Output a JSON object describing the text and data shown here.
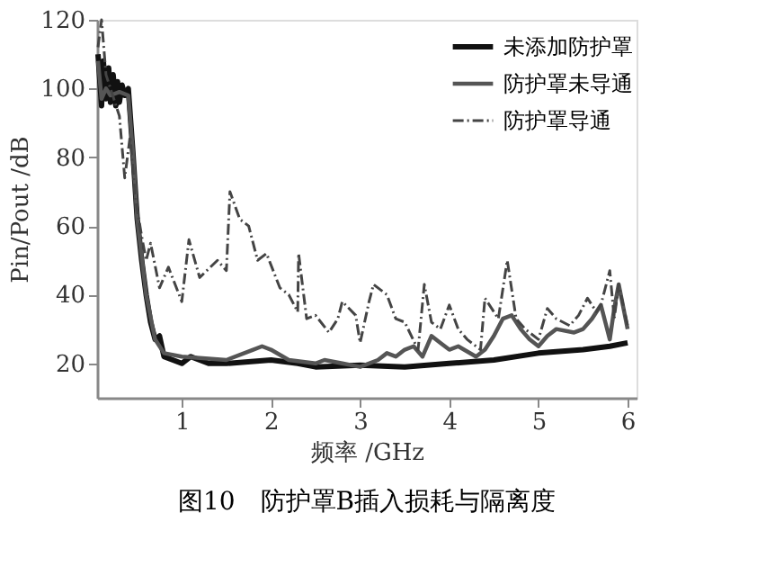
{
  "chart_data": {
    "type": "line",
    "title": "图10　防护罩B插入损耗与隔离度",
    "xlabel": "频率 /GHz",
    "ylabel": "Pin/Pout /dB",
    "xlim": [
      0.05,
      6.1
    ],
    "ylim": [
      10,
      120
    ],
    "xticks": [
      1,
      2,
      3,
      4,
      5,
      6
    ],
    "yticks": [
      20,
      40,
      60,
      80,
      100,
      120
    ],
    "grid": false,
    "legend": "top right",
    "marker": "none",
    "series": [
      {
        "name": "未添加防护罩",
        "color": "#111111",
        "line_style": "solid",
        "x": [
          0.06,
          0.1,
          0.12,
          0.15,
          0.18,
          0.2,
          0.23,
          0.26,
          0.28,
          0.3,
          0.33,
          0.36,
          0.4,
          0.45,
          0.5,
          0.55,
          0.6,
          0.65,
          0.7,
          0.75,
          0.8,
          0.9,
          1.0,
          1.1,
          1.3,
          1.5,
          2.0,
          2.3,
          2.5,
          3.0,
          3.5,
          4.0,
          4.5,
          5.0,
          5.5,
          5.8,
          6.0
        ],
        "values": [
          110,
          95,
          108,
          97,
          106,
          96,
          104,
          95,
          102,
          96,
          101,
          98,
          100,
          82,
          62,
          50,
          40,
          32,
          27,
          28,
          22,
          21,
          20,
          22,
          20,
          20,
          21,
          20,
          19,
          19.5,
          19,
          20,
          21,
          23,
          24,
          25,
          26
        ]
      },
      {
        "name": "防护罩未导通",
        "color": "#555555",
        "line_style": "solid",
        "x": [
          0.06,
          0.1,
          0.15,
          0.2,
          0.3,
          0.4,
          0.45,
          0.5,
          0.6,
          0.7,
          0.8,
          1.0,
          1.5,
          1.8,
          1.9,
          2.0,
          2.2,
          2.5,
          2.6,
          2.8,
          3.0,
          3.2,
          3.3,
          3.4,
          3.5,
          3.6,
          3.7,
          3.8,
          3.9,
          4.0,
          4.1,
          4.3,
          4.4,
          4.5,
          4.6,
          4.7,
          4.8,
          4.9,
          5.0,
          5.1,
          5.2,
          5.4,
          5.5,
          5.6,
          5.7,
          5.75,
          5.8,
          5.85,
          5.9,
          6.0
        ],
        "values": [
          108,
          97,
          100,
          98,
          99,
          98,
          82,
          62,
          40,
          27,
          23,
          22,
          21,
          24,
          25,
          24,
          21,
          20,
          21,
          20,
          19,
          21,
          23,
          22,
          24,
          25,
          22,
          28,
          26,
          24,
          25,
          22,
          24,
          28,
          33,
          34,
          30,
          27,
          25,
          28,
          30,
          29,
          30,
          33,
          37,
          32,
          27,
          36,
          43,
          30
        ]
      },
      {
        "name": "防护罩导通",
        "color": "#444444",
        "line_style": "dashed",
        "x": [
          0.06,
          0.1,
          0.15,
          0.2,
          0.25,
          0.3,
          0.36,
          0.42,
          0.48,
          0.55,
          0.6,
          0.65,
          0.75,
          0.85,
          1.0,
          1.08,
          1.2,
          1.4,
          1.5,
          1.54,
          1.65,
          1.75,
          1.85,
          1.95,
          2.1,
          2.2,
          2.3,
          2.31,
          2.4,
          2.5,
          2.65,
          2.75,
          2.8,
          2.95,
          3.0,
          3.1,
          3.15,
          3.3,
          3.4,
          3.5,
          3.65,
          3.72,
          3.8,
          3.9,
          4.0,
          4.1,
          4.2,
          4.35,
          4.4,
          4.55,
          4.65,
          4.75,
          4.85,
          5.0,
          5.1,
          5.2,
          5.35,
          5.45,
          5.55,
          5.65,
          5.7,
          5.8,
          5.85,
          5.9,
          6.0
        ],
        "values": [
          112,
          120,
          104,
          100,
          96,
          92,
          74,
          86,
          68,
          57,
          50,
          55,
          42,
          48,
          38,
          56,
          45,
          50,
          47,
          70,
          62,
          60,
          50,
          52,
          42,
          40,
          35,
          52,
          33,
          34,
          29,
          33,
          38,
          34,
          26,
          38,
          43,
          40,
          33,
          32,
          24,
          43,
          32,
          30,
          37,
          30,
          27,
          24,
          39,
          33,
          50,
          33,
          30,
          27,
          36,
          33,
          31,
          34,
          39,
          35,
          37,
          47,
          33,
          43,
          31
        ]
      }
    ]
  }
}
